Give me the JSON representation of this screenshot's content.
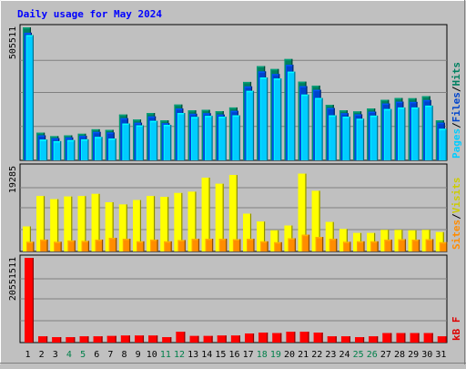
{
  "chart_data": [
    {
      "type": "bar",
      "title": "Daily usage for May 2024",
      "panel": "hits-files-pages",
      "ymax_label": "505511",
      "ylim": [
        0,
        505511
      ],
      "grid": true,
      "legend": [
        {
          "text": "Pages",
          "color": "#00ccff"
        },
        {
          "text": "Files",
          "color": "#0044cc"
        },
        {
          "text": "Hits",
          "color": "#008060"
        }
      ],
      "categories": [
        "1",
        "2",
        "3",
        "4",
        "5",
        "6",
        "7",
        "8",
        "9",
        "10",
        "11",
        "12",
        "13",
        "14",
        "15",
        "16",
        "17",
        "18",
        "19",
        "20",
        "21",
        "22",
        "23",
        "24",
        "25",
        "26",
        "27",
        "28",
        "29",
        "30",
        "31"
      ],
      "series": [
        {
          "name": "Hits",
          "values": [
            505511,
            105000,
            92000,
            95000,
            101000,
            118000,
            116000,
            174000,
            155000,
            180000,
            152000,
            212000,
            190000,
            192000,
            187000,
            201000,
            298000,
            358000,
            347000,
            385000,
            299000,
            284000,
            211000,
            190000,
            186000,
            197000,
            230000,
            237000,
            236000,
            244000,
            152000
          ]
        },
        {
          "name": "Files",
          "values": [
            485000,
            95000,
            84000,
            87000,
            93000,
            108000,
            106000,
            160000,
            143000,
            167000,
            141000,
            197000,
            177000,
            179000,
            174000,
            188000,
            281000,
            338000,
            328000,
            363000,
            282000,
            268000,
            199000,
            179000,
            175000,
            185000,
            216000,
            223000,
            222000,
            229000,
            143000
          ]
        },
        {
          "name": "Pages",
          "values": [
            476000,
            79000,
            73000,
            77000,
            80000,
            89000,
            83000,
            140000,
            133000,
            150000,
            135000,
            180000,
            165000,
            169000,
            166000,
            171000,
            264000,
            315000,
            311000,
            337000,
            250000,
            237000,
            171000,
            166000,
            158000,
            170000,
            195000,
            201000,
            201000,
            208000,
            120000
          ]
        }
      ]
    },
    {
      "type": "bar",
      "panel": "visits-sites",
      "ymax_label": "19285",
      "ylim": [
        0,
        19285
      ],
      "grid": true,
      "legend": [
        {
          "text": "Sites",
          "color": "#ff8c00"
        },
        {
          "text": "Visits",
          "color": "#cccc00"
        }
      ],
      "categories": [
        "1",
        "2",
        "3",
        "4",
        "5",
        "6",
        "7",
        "8",
        "9",
        "10",
        "11",
        "12",
        "13",
        "14",
        "15",
        "16",
        "17",
        "18",
        "19",
        "20",
        "21",
        "22",
        "23",
        "24",
        "25",
        "26",
        "27",
        "28",
        "29",
        "30",
        "31"
      ],
      "series": [
        {
          "name": "Visits",
          "values": [
            5700,
            12600,
            11900,
            12500,
            12600,
            13100,
            11200,
            10700,
            11700,
            12600,
            12400,
            13300,
            13600,
            16800,
            15400,
            17400,
            8600,
            6800,
            4800,
            5900,
            17700,
            13800,
            6700,
            5100,
            4200,
            4200,
            4900,
            4900,
            4800,
            4900,
            4400
          ]
        },
        {
          "name": "Sites",
          "values": [
            2200,
            2700,
            2200,
            2500,
            2400,
            2700,
            3100,
            2900,
            2300,
            2700,
            2300,
            2600,
            2900,
            2900,
            2900,
            2800,
            2900,
            2300,
            2100,
            3000,
            3800,
            3300,
            2900,
            2200,
            2300,
            2300,
            2700,
            2800,
            2700,
            2800,
            2100
          ]
        }
      ]
    },
    {
      "type": "bar",
      "panel": "kbytes",
      "ymax_label": "20551511",
      "ylim": [
        0,
        20551511
      ],
      "grid": true,
      "legend": [
        {
          "text": "kB F",
          "color": "#dd0000"
        }
      ],
      "categories": [
        "1",
        "2",
        "3",
        "4",
        "5",
        "6",
        "7",
        "8",
        "9",
        "10",
        "11",
        "12",
        "13",
        "14",
        "15",
        "16",
        "17",
        "18",
        "19",
        "20",
        "21",
        "22",
        "23",
        "24",
        "25",
        "26",
        "27",
        "28",
        "29",
        "30",
        "31"
      ],
      "weekend_days": [
        "4",
        "5",
        "11",
        "12",
        "18",
        "19",
        "25",
        "26"
      ],
      "series": [
        {
          "name": "kB F",
          "values": [
            20551511,
            1500000,
            1300000,
            1300000,
            1500000,
            1500000,
            1600000,
            1700000,
            1700000,
            1700000,
            1300000,
            2600000,
            1600000,
            1600000,
            1700000,
            1700000,
            2200000,
            2400000,
            2300000,
            2600000,
            2600000,
            2400000,
            1500000,
            1500000,
            1300000,
            1500000,
            2300000,
            2300000,
            2300000,
            2300000,
            1500000
          ]
        }
      ]
    }
  ]
}
